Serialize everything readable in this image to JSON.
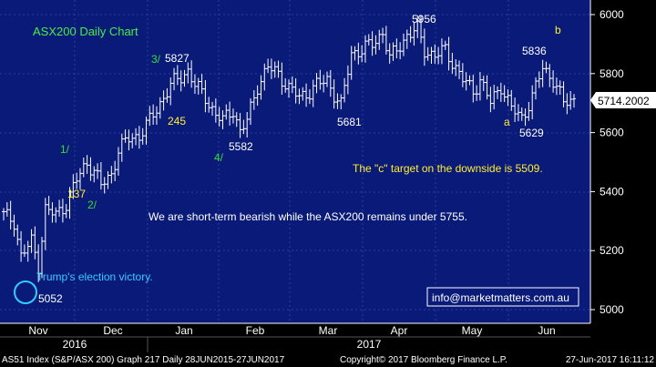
{
  "chart_data": {
    "type": "ohlc",
    "title": "ASX200 Daily Chart",
    "ylim": [
      4950,
      6050
    ],
    "y_ticks": [
      5000,
      5200,
      5400,
      5600,
      5800,
      6000
    ],
    "y_tick_labels": [
      "5000",
      "5200",
      "5400",
      "5600",
      "5800",
      "6000"
    ],
    "x_tick_labels": [
      "Nov",
      "Dec",
      "Jan",
      "Feb",
      "Mar",
      "Apr",
      "May",
      "Jun"
    ],
    "year_labels": [
      "2016",
      "2017"
    ],
    "last_price": "5714.2002",
    "price_anchors": [
      [
        0,
        5320
      ],
      [
        3,
        5300
      ],
      [
        5,
        5180
      ],
      [
        8,
        5230
      ],
      [
        10,
        5150
      ],
      [
        12,
        5340
      ],
      [
        15,
        5320
      ],
      [
        18,
        5360
      ],
      [
        21,
        5440
      ],
      [
        24,
        5500
      ],
      [
        26,
        5470
      ],
      [
        28,
        5420
      ],
      [
        31,
        5460
      ],
      [
        33,
        5540
      ],
      [
        36,
        5580
      ],
      [
        39,
        5590
      ],
      [
        42,
        5640
      ],
      [
        45,
        5700
      ],
      [
        48,
        5760
      ],
      [
        51,
        5790
      ],
      [
        53,
        5810
      ],
      [
        55,
        5760
      ],
      [
        58,
        5720
      ],
      [
        61,
        5660
      ],
      [
        63,
        5640
      ],
      [
        66,
        5680
      ],
      [
        68,
        5600
      ],
      [
        70,
        5640
      ],
      [
        73,
        5760
      ],
      [
        76,
        5820
      ],
      [
        79,
        5800
      ],
      [
        82,
        5750
      ],
      [
        85,
        5720
      ],
      [
        88,
        5740
      ],
      [
        90,
        5760
      ],
      [
        93,
        5780
      ],
      [
        95,
        5730
      ],
      [
        97,
        5690
      ],
      [
        100,
        5870
      ],
      [
        103,
        5880
      ],
      [
        106,
        5900
      ],
      [
        109,
        5940
      ],
      [
        111,
        5850
      ],
      [
        113,
        5880
      ],
      [
        116,
        5930
      ],
      [
        119,
        5950
      ],
      [
        121,
        5880
      ],
      [
        124,
        5860
      ],
      [
        127,
        5880
      ],
      [
        129,
        5840
      ],
      [
        132,
        5780
      ],
      [
        135,
        5740
      ],
      [
        137,
        5780
      ],
      [
        140,
        5700
      ],
      [
        143,
        5760
      ],
      [
        146,
        5680
      ],
      [
        149,
        5650
      ],
      [
        152,
        5720
      ],
      [
        155,
        5820
      ],
      [
        158,
        5780
      ],
      [
        161,
        5700
      ],
      [
        164,
        5714
      ]
    ],
    "annotations": [
      {
        "id": "1",
        "text": "1/",
        "color": "#33dd33"
      },
      {
        "id": "2",
        "text": "2/",
        "color": "#33dd33"
      },
      {
        "id": "3",
        "text": "3/",
        "color": "#33dd33"
      },
      {
        "id": "4",
        "text": "4/",
        "color": "#33dd33"
      },
      {
        "id": "137",
        "text": "137",
        "color": "#ffee33"
      },
      {
        "id": "245",
        "text": "245",
        "color": "#ffee33"
      },
      {
        "id": "a",
        "text": "a",
        "color": "#ffee33"
      },
      {
        "id": "b",
        "text": "b",
        "color": "#ffee33"
      },
      {
        "id": "5827",
        "text": "5827",
        "color": "#ffffff"
      },
      {
        "id": "5582",
        "text": "5582",
        "color": "#ffffff"
      },
      {
        "id": "5681",
        "text": "5681",
        "color": "#ffffff"
      },
      {
        "id": "5956",
        "text": "5956",
        "color": "#ffffff"
      },
      {
        "id": "5836",
        "text": "5836",
        "color": "#ffffff"
      },
      {
        "id": "5629",
        "text": "5629",
        "color": "#ffffff"
      },
      {
        "id": "5052",
        "text": "5052",
        "color": "#ffffff"
      }
    ],
    "notes": {
      "election": "Trump's election victory.",
      "target": "The \"c\" target on the downside is 5509.",
      "bearish": "We are short-term bearish while the ASX200 remains under 5755.",
      "email": "info@marketmatters.com.au"
    },
    "footer": {
      "left": "AS51 Index (S&P/ASX 200) Graph 217  Daily 28JUN2015-27JUN2017",
      "copyright": "Copyright© 2017 Bloomberg Finance L.P.",
      "date": "27-Jun-2017 16:11:12"
    },
    "colors": {
      "background": "#000000",
      "plot_area": "#0a1a78",
      "bars": "#ffffff",
      "title": "#44ee44",
      "note": "#ffee33",
      "circle": "#33ccff",
      "axis_text": "#ffffff"
    }
  }
}
